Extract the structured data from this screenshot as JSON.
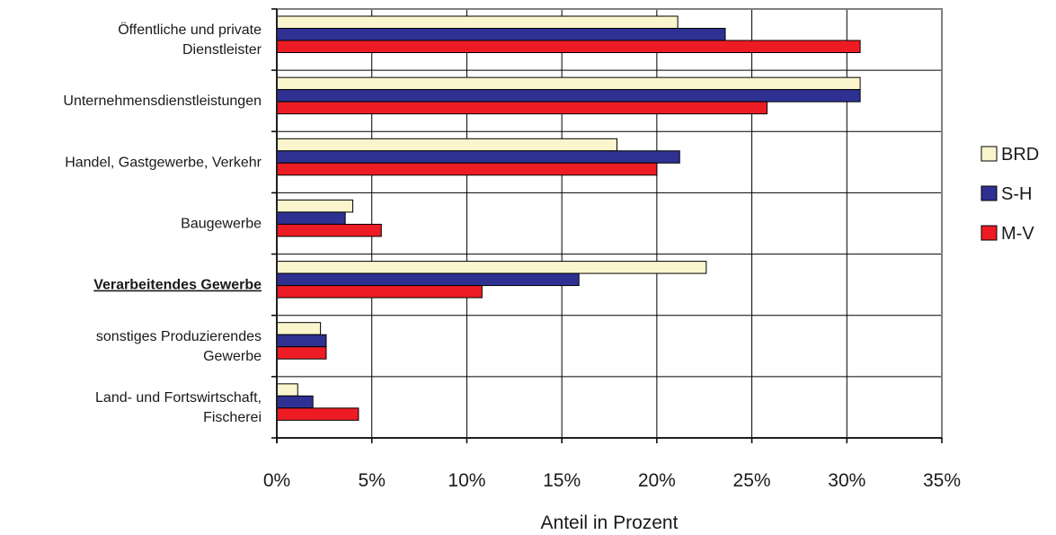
{
  "chart_data": {
    "type": "bar",
    "orientation": "horizontal",
    "xlabel": "Anteil in Prozent",
    "xlim": [
      0,
      35
    ],
    "x_ticks": [
      "0%",
      "5%",
      "10%",
      "15%",
      "20%",
      "25%",
      "30%",
      "35%"
    ],
    "grid": true,
    "legend_position": "right",
    "categories": [
      "Öffentliche und private Dienstleister",
      "Unternehmensdienstleistungen",
      "Handel, Gastgewerbe, Verkehr",
      "Baugewerbe",
      "Verarbeitendes Gewerbe",
      "sonstiges Produzierendes Gewerbe",
      "Land- und Fortswirtschaft, Fischerei"
    ],
    "category_lines": [
      [
        "Öffentliche und private",
        "Dienstleister"
      ],
      [
        "Unternehmensdienstleistungen"
      ],
      [
        "Handel, Gastgewerbe, Verkehr"
      ],
      [
        "Baugewerbe"
      ],
      [
        "Verarbeitendes Gewerbe"
      ],
      [
        "sonstiges Produzierendes",
        "Gewerbe"
      ],
      [
        "Land- und Fortswirtschaft,",
        "Fischerei"
      ]
    ],
    "emphasized_category": "Verarbeitendes Gewerbe",
    "series": [
      {
        "name": "BRD",
        "color": "#faf5cd",
        "values": [
          21.1,
          30.7,
          17.9,
          4.0,
          22.6,
          2.3,
          1.1
        ]
      },
      {
        "name": "S-H",
        "color": "#2e3192",
        "values": [
          23.6,
          30.7,
          21.2,
          3.6,
          15.9,
          2.6,
          1.9
        ]
      },
      {
        "name": "M-V",
        "color": "#ed1c24",
        "values": [
          30.7,
          25.8,
          20.0,
          5.5,
          10.8,
          2.6,
          4.3
        ]
      }
    ]
  }
}
